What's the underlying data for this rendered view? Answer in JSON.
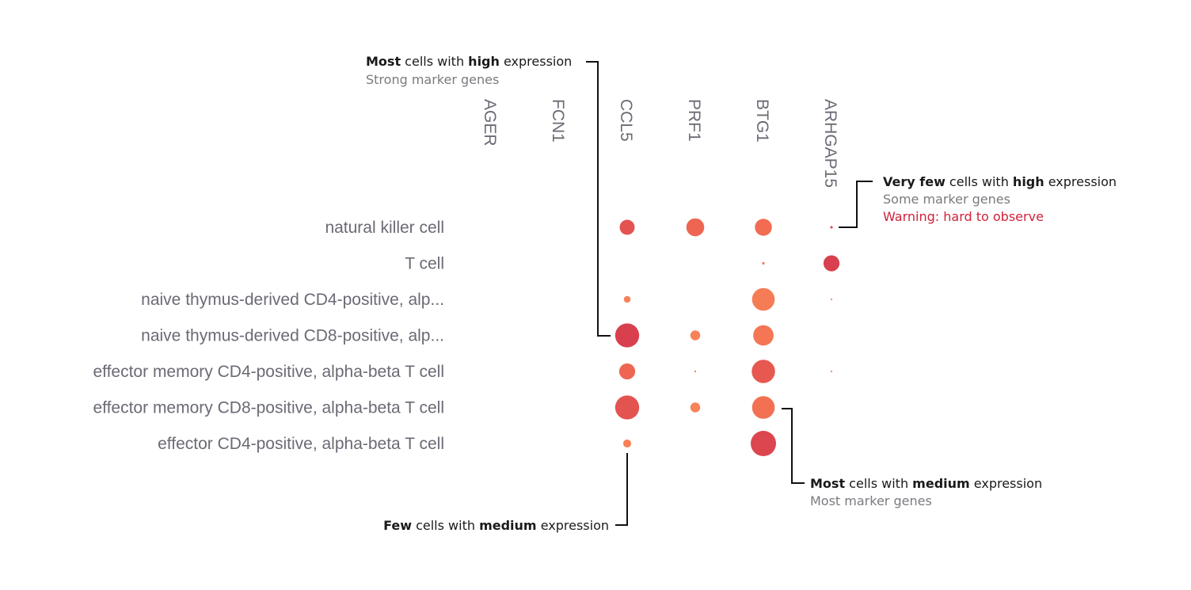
{
  "chart_data": {
    "type": "scatter",
    "title": "",
    "xlabel": "",
    "ylabel": "",
    "genes": [
      "AGER",
      "FCN1",
      "CCL5",
      "PRF1",
      "BTG1",
      "ARHGAP15"
    ],
    "cell_types": [
      "natural killer cell",
      "T cell",
      "naive thymus-derived CD4-positive, alp...",
      "naive thymus-derived CD8-positive, alp...",
      "effector memory CD4-positive, alpha-beta T cell",
      "effector memory CD8-positive, alpha-beta T cell",
      "effector CD4-positive, alpha-beta T cell"
    ],
    "points": [
      {
        "gene": "CCL5",
        "cell_type": "natural killer cell",
        "fraction": 0.35,
        "expression": 0.85
      },
      {
        "gene": "PRF1",
        "cell_type": "natural killer cell",
        "fraction": 0.5,
        "expression": 0.7
      },
      {
        "gene": "BTG1",
        "cell_type": "natural killer cell",
        "fraction": 0.45,
        "expression": 0.65
      },
      {
        "gene": "ARHGAP15",
        "cell_type": "natural killer cell",
        "fraction": 0.01,
        "expression": 0.9
      },
      {
        "gene": "BTG1",
        "cell_type": "T cell",
        "fraction": 0.01,
        "expression": 0.5
      },
      {
        "gene": "ARHGAP15",
        "cell_type": "T cell",
        "fraction": 0.4,
        "expression": 1.0
      },
      {
        "gene": "CCL5",
        "cell_type": "naive thymus-derived CD4-positive, alp...",
        "fraction": 0.07,
        "expression": 0.45
      },
      {
        "gene": "BTG1",
        "cell_type": "naive thymus-derived CD4-positive, alp...",
        "fraction": 0.8,
        "expression": 0.5
      },
      {
        "gene": "ARHGAP15",
        "cell_type": "naive thymus-derived CD4-positive, alp...",
        "fraction": 0.005,
        "expression": 0.4
      },
      {
        "gene": "CCL5",
        "cell_type": "naive thymus-derived CD8-positive, alp...",
        "fraction": 0.9,
        "expression": 1.0
      },
      {
        "gene": "PRF1",
        "cell_type": "naive thymus-derived CD8-positive, alp...",
        "fraction": 0.15,
        "expression": 0.45
      },
      {
        "gene": "BTG1",
        "cell_type": "naive thymus-derived CD8-positive, alp...",
        "fraction": 0.65,
        "expression": 0.55
      },
      {
        "gene": "CCL5",
        "cell_type": "effector memory CD4-positive, alpha-beta T cell",
        "fraction": 0.4,
        "expression": 0.7
      },
      {
        "gene": "PRF1",
        "cell_type": "effector memory CD4-positive, alpha-beta T cell",
        "fraction": 0.005,
        "expression": 0.5
      },
      {
        "gene": "BTG1",
        "cell_type": "effector memory CD4-positive, alpha-beta T cell",
        "fraction": 0.85,
        "expression": 0.8
      },
      {
        "gene": "ARHGAP15",
        "cell_type": "effector memory CD4-positive, alpha-beta T cell",
        "fraction": 0.005,
        "expression": 0.4
      },
      {
        "gene": "CCL5",
        "cell_type": "effector memory CD8-positive, alpha-beta T cell",
        "fraction": 0.9,
        "expression": 0.85
      },
      {
        "gene": "PRF1",
        "cell_type": "effector memory CD8-positive, alpha-beta T cell",
        "fraction": 0.15,
        "expression": 0.45
      },
      {
        "gene": "BTG1",
        "cell_type": "effector memory CD8-positive, alpha-beta T cell",
        "fraction": 0.8,
        "expression": 0.6
      },
      {
        "gene": "CCL5",
        "cell_type": "effector CD4-positive, alpha-beta T cell",
        "fraction": 0.1,
        "expression": 0.45
      },
      {
        "gene": "BTG1",
        "cell_type": "effector CD4-positive, alpha-beta T cell",
        "fraction": 1.0,
        "expression": 0.95
      }
    ],
    "color_scale": [
      "#fdbb63",
      "#fc8d59",
      "#f06a52",
      "#d9404e"
    ],
    "grid": false,
    "legend": "none"
  },
  "annotations": {
    "strong": {
      "line1": [
        {
          "text": "Most",
          "bold": true
        },
        {
          "text": " cells with ",
          "bold": false
        },
        {
          "text": "high",
          "bold": true
        },
        {
          "text": " expression",
          "bold": false
        }
      ],
      "subtitle": "Strong marker genes"
    },
    "very_few": {
      "line1": [
        {
          "text": "Very few",
          "bold": true
        },
        {
          "text": " cells with ",
          "bold": false
        },
        {
          "text": "high",
          "bold": true
        },
        {
          "text": " expression",
          "bold": false
        }
      ],
      "subtitle": "Some marker genes",
      "warning": "Warning: hard to observe"
    },
    "most_medium": {
      "line1": [
        {
          "text": "Most",
          "bold": true
        },
        {
          "text": " cells with ",
          "bold": false
        },
        {
          "text": "medium",
          "bold": true
        },
        {
          "text": " expression",
          "bold": false
        }
      ],
      "subtitle": "Most marker genes"
    },
    "few_medium": {
      "line1": [
        {
          "text": "Few",
          "bold": true
        },
        {
          "text": " cells with ",
          "bold": false
        },
        {
          "text": "medium",
          "bold": true
        },
        {
          "text": " expression",
          "bold": false
        }
      ]
    }
  }
}
